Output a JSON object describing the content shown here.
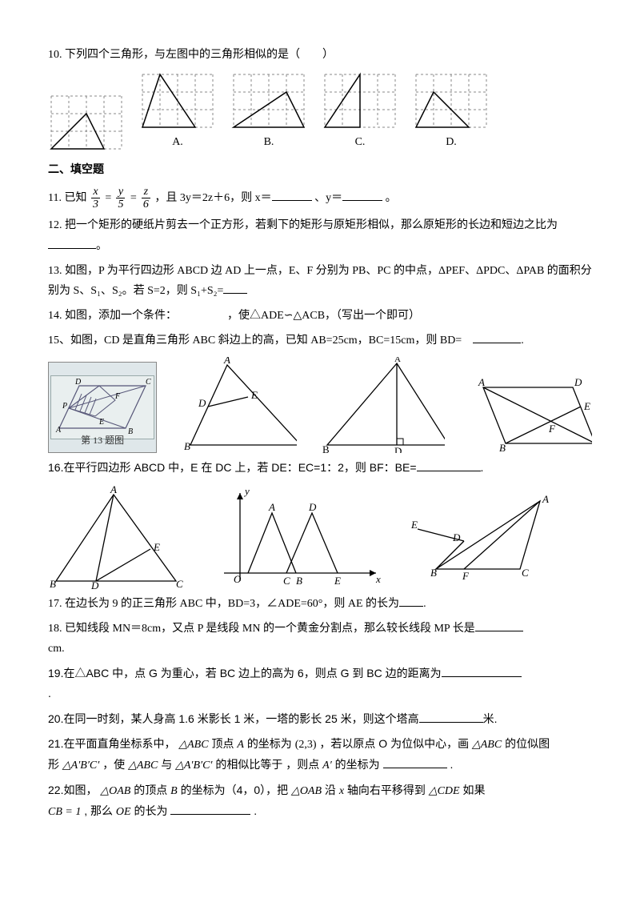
{
  "q10": "10. 下列四个三角形，与左图中的三角形相似的是（　　）",
  "optA": "A.",
  "optB": "B.",
  "optC": "C.",
  "optD": "D.",
  "section2": "二、填空题",
  "q11a": "11. 已知",
  "q11b": "，且 3y＝2z＋6，则 x＝",
  "q11c": "、y＝",
  "q11d": "。",
  "frac": {
    "x": "x",
    "y": "y",
    "z": "z",
    "d3": "3",
    "d5": "5",
    "d6": "6"
  },
  "q12a": "12. 把一个矩形的硬纸片剪去一个正方形，若剩下的矩形与原矩形相似，那么原矩形的长边和短边之比为",
  "q12b": "。",
  "q13a": "13. 如图，P 为平行四边形 ABCD 边 AD 上一点，E、F 分别为 PB、PC 的中点，ΔPEF、ΔPDC、ΔPAB 的面积分别为 S、S₁、S₂。若 S=2，则 S₁+S₂=",
  "q14": "14. 如图，添加一个条件：　　　　　，使△ADE∽△ACB，（写出一个即可）",
  "q15a": "15、如图，CD 是直角三角形 ABC 斜边上的高，已知 AB=25cm，BC=15cm，则 BD=",
  "q15b": ".",
  "thumb_label": "第 13 题图",
  "q16a": "16.在平行四边形 ABCD 中，E 在 DC 上，若 DE：EC=1：2，则 BF：BE=",
  "q16b": ".",
  "q17a": "17. 在边长为 9 的正三角形 ABC 中，BD=3，∠ADE=60°，则 AE 的长为",
  "q17b": ".",
  "q18a": "18. 已知线段 MN＝8cm，又点 P 是线段 MN 的一个黄金分割点，那么较长线段 MP 长是",
  "q18b": "cm.",
  "q19a": "19.在△ABC 中，点 G 为重心，若 BC 边上的高为 6，则点 G 到 BC 边的距离为",
  "q19b": ".",
  "q20a": "20.在同一时刻，某人身高 1.6 米影长 1 米，一塔的影长 25 米，则这个塔高",
  "q20b": "米.",
  "q21a": "21.在平面直角坐标系中，",
  "q21b": " 顶点 ",
  "q21c": " 的坐标为 ",
  "q21coord": "(2,3)",
  "q21d": "，若以原点 O 为位似中心，画",
  "q21e": " 的位似图",
  "q21f": "形",
  "q21g": "，使",
  "q21h": " 与 ",
  "q21i": " 的相似比等于 ，则点 ",
  "q21j": " 的坐标为",
  "q21k": ".",
  "mABC": "△ABC",
  "mA": "A",
  "mApBpCp": "△A′B′C′",
  "mAp": "A′",
  "q22a": "22.如图，",
  "q22b": " 的顶点 ",
  "q22c": " 的坐标为（4，0），把 ",
  "q22d": " 沿 ",
  "q22e": " 轴向右平移得到 ",
  "q22f": "  如果",
  "q22g": ", 那么 ",
  "q22h": " 的长为",
  "q22i": ".",
  "mOAB": "△OAB",
  "mB": "B",
  "mx": "x",
  "mCDE": "△CDE",
  "mCB1": "CB = 1",
  "mOE": "OE",
  "fig": {
    "labels": {
      "A": "A",
      "B": "B",
      "C": "C",
      "D": "D",
      "E": "E",
      "F": "F",
      "O": "O",
      "x": "x",
      "y": "y",
      "P": "P"
    }
  },
  "grid": {
    "cell": 22,
    "cols": 4,
    "rows": 3,
    "stroke": "#888",
    "dash": "3,3",
    "triStroke": "#000",
    "ref": [
      [
        0,
        3
      ],
      [
        3,
        3
      ],
      [
        2,
        1
      ]
    ],
    "optA": [
      [
        0,
        3
      ],
      [
        3,
        3
      ],
      [
        1,
        0
      ]
    ],
    "optB": [
      [
        0,
        3
      ],
      [
        4,
        3
      ],
      [
        3,
        1
      ]
    ],
    "optC": [
      [
        0,
        3
      ],
      [
        2,
        3
      ],
      [
        2,
        0
      ]
    ],
    "optD": [
      [
        0,
        3
      ],
      [
        3,
        3
      ],
      [
        1,
        1
      ]
    ]
  }
}
